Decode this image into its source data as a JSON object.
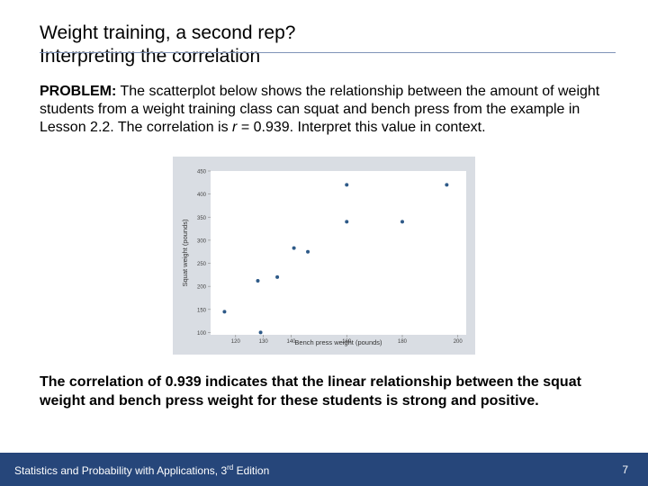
{
  "slide": {
    "title_line1": "Weight training, a second rep?",
    "title_line2": "Interpreting the correlation",
    "problem_label": "PROBLEM:",
    "problem_text_before_r": " The scatterplot below shows the relationship between the amount of weight students from a weight training class can squat and bench press from the example in Lesson 2.2.  The correlation is ",
    "problem_r": "r",
    "problem_text_after_r": " = 0.939. Interpret this value in context.",
    "answer": "The correlation of 0.939 indicates that the linear relationship between the squat weight and bench press weight for these students is strong and positive."
  },
  "footer": {
    "text_main": "Statistics and Probability with Applications, 3",
    "text_sup": "rd",
    "text_end": " Edition",
    "page_number": "7"
  },
  "chart_data": {
    "type": "scatter",
    "xlabel": "Bench press weight (pounds)",
    "ylabel": "Squat weight (pounds)",
    "xlim": [
      111,
      203
    ],
    "ylim": [
      95,
      450
    ],
    "xticks": [
      120,
      130,
      140,
      160,
      180,
      200
    ],
    "xtick_labels": [
      "120",
      "130",
      "140",
      "160",
      "180",
      "200"
    ],
    "yticks": [
      100,
      150,
      200,
      250,
      300,
      350,
      400,
      450
    ],
    "ytick_labels": [
      "100",
      "150",
      "200",
      "250",
      "300",
      "350",
      "400",
      "450"
    ],
    "points": [
      {
        "x": 116,
        "y": 145
      },
      {
        "x": 128,
        "y": 212
      },
      {
        "x": 129,
        "y": 100
      },
      {
        "x": 135,
        "y": 220
      },
      {
        "x": 141,
        "y": 283
      },
      {
        "x": 146,
        "y": 275
      },
      {
        "x": 160,
        "y": 340
      },
      {
        "x": 160,
        "y": 420
      },
      {
        "x": 180,
        "y": 340
      },
      {
        "x": 196,
        "y": 420
      }
    ],
    "colors": {
      "frame": "#d9dde3",
      "plot_bg": "#ffffff",
      "point": "#2e5a88"
    }
  }
}
